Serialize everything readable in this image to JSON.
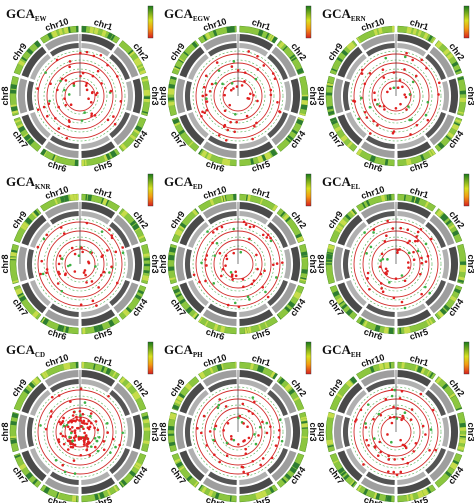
{
  "panels": [
    {
      "title": "GCA",
      "subscript": "EW"
    },
    {
      "title": "GCA",
      "subscript": "EGW"
    },
    {
      "title": "GCA",
      "subscript": "ERN"
    },
    {
      "title": "GCA",
      "subscript": "KNR"
    },
    {
      "title": "GCA",
      "subscript": "ED"
    },
    {
      "title": "GCA",
      "subscript": "EL"
    },
    {
      "title": "GCA",
      "subscript": "CD"
    },
    {
      "title": "GCA",
      "subscript": "PH"
    },
    {
      "title": "GCA",
      "subscript": "EH"
    }
  ],
  "chromosomes": [
    "chr1",
    "chr2",
    "chr3",
    "chr4",
    "chr5",
    "chr6",
    "chr7",
    "chr8",
    "chr9",
    "chr10"
  ]
}
